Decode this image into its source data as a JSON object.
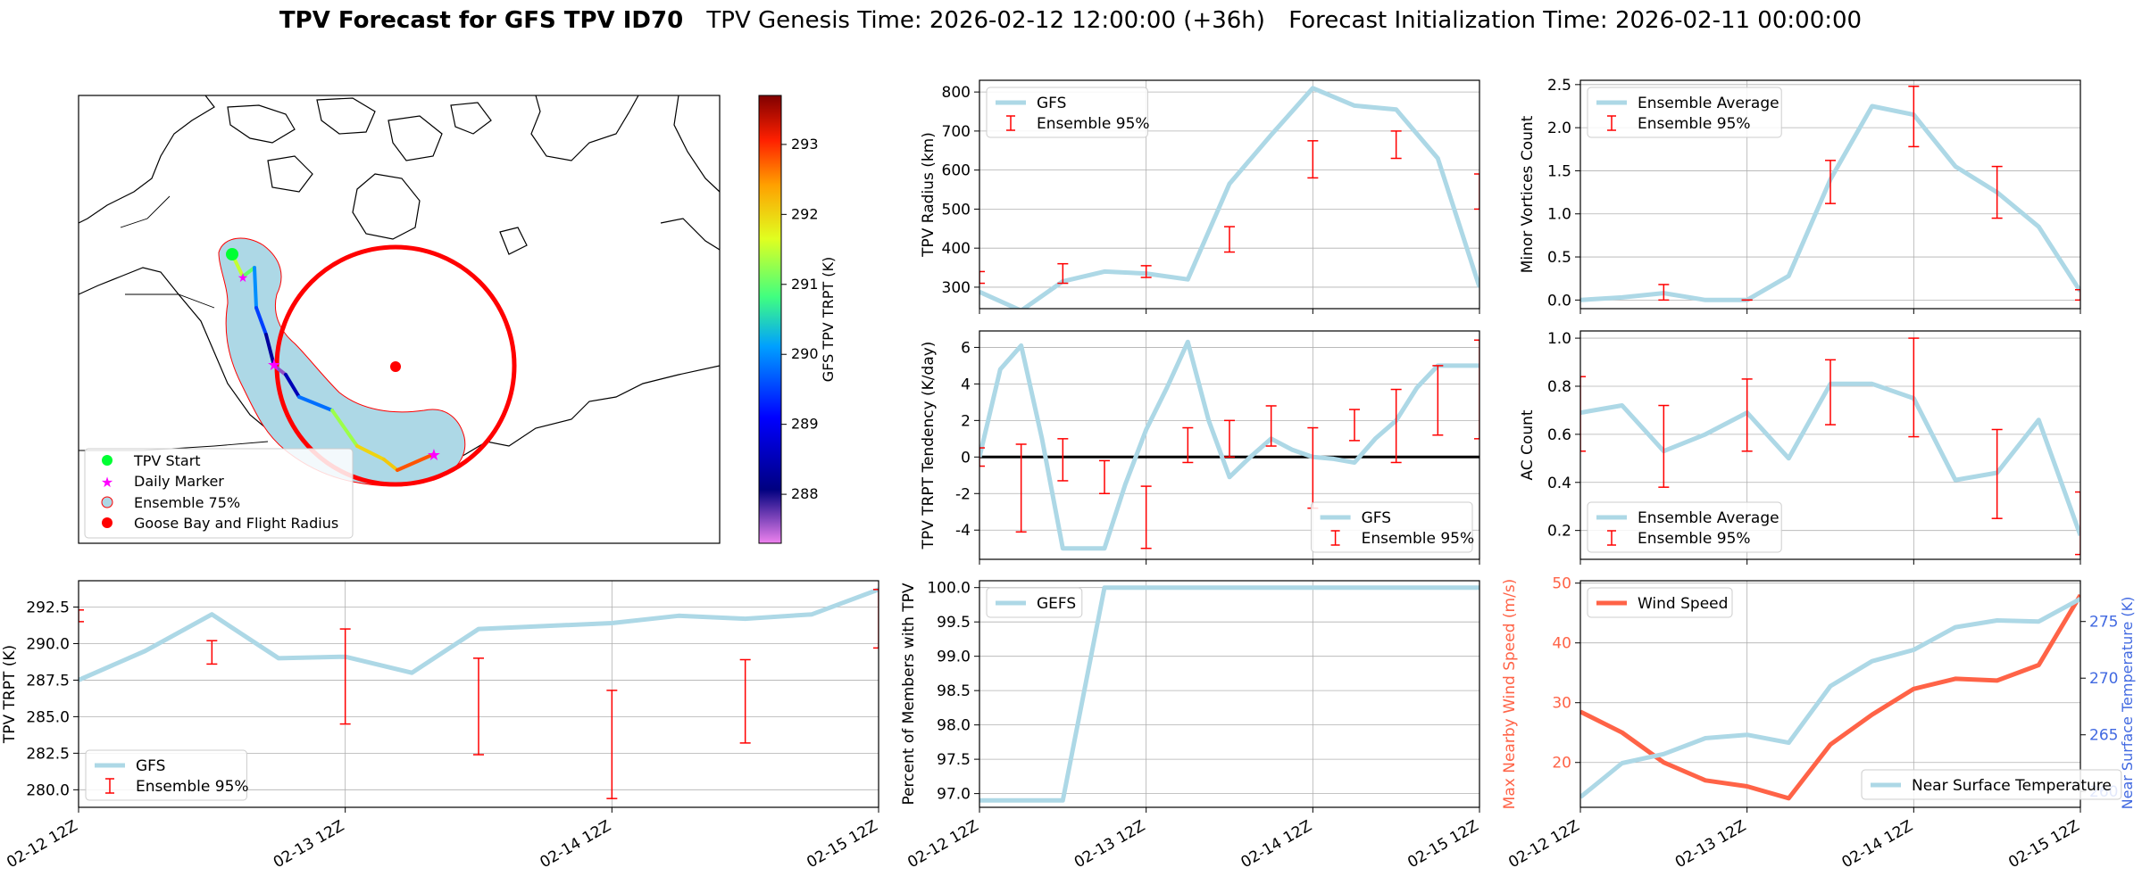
{
  "title": {
    "bold": "TPV Forecast for GFS TPV ID70",
    "genesis": "TPV Genesis Time: 2026-02-12 12:00:00 (+36h)",
    "init": "Forecast Initialization Time: 2026-02-11 00:00:00"
  },
  "colors": {
    "gfs": "#add8e6",
    "ens": "#ff0000",
    "wind": "#ff6347",
    "temp_axis": "#4169e1",
    "ens75": "#add8e6",
    "circle": "#ff0000"
  },
  "time_labels": [
    "02-12 12Z",
    "02-13 12Z",
    "02-14 12Z",
    "02-15 12Z"
  ],
  "map": {
    "legend": [
      "TPV Start",
      "Daily Marker",
      "Ensemble 75%",
      "Goose Bay and Flight Radius"
    ],
    "colorbar": {
      "label": "GFS TPV TRPT (K)",
      "ticks": [
        288,
        289,
        290,
        291,
        292,
        293
      ],
      "range": [
        287.3,
        293.7
      ]
    },
    "track_trpt": [
      291.5,
      291.0,
      290.0,
      289.5,
      288.3,
      287.6,
      288.5,
      289.8,
      291.3,
      292.0,
      292.1,
      292.8,
      293.0
    ]
  },
  "chart_data": [
    {
      "id": "radius",
      "type": "line",
      "ylabel": "TPV Radius (km)",
      "ylim": [
        245,
        830
      ],
      "yticks": [
        300,
        400,
        500,
        600,
        700,
        800
      ],
      "legend": [
        "GFS",
        "Ensemble 95%"
      ],
      "legend_pos": "top-left",
      "x": [
        0,
        0.25,
        0.5,
        0.75,
        1.0,
        1.25,
        1.5,
        1.75,
        2.0,
        2.25,
        2.5,
        2.75,
        3.0
      ],
      "series": [
        {
          "name": "GFS",
          "values": [
            288,
            240,
            315,
            340,
            335,
            320,
            565,
            690,
            810,
            765,
            755,
            630,
            300
          ]
        }
      ],
      "errorbars": [
        {
          "x": 0,
          "lo": 310,
          "hi": 340
        },
        {
          "x": 0.5,
          "lo": 310,
          "hi": 360
        },
        {
          "x": 1.0,
          "lo": 325,
          "hi": 355
        },
        {
          "x": 1.5,
          "lo": 390,
          "hi": 455
        },
        {
          "x": 2.0,
          "lo": 580,
          "hi": 675
        },
        {
          "x": 2.5,
          "lo": 630,
          "hi": 700
        },
        {
          "x": 3.0,
          "lo": 500,
          "hi": 590
        }
      ]
    },
    {
      "id": "minor",
      "type": "line",
      "ylabel": "Minor Vortices Count",
      "ylim": [
        -0.1,
        2.55
      ],
      "yticks": [
        0.0,
        0.5,
        1.0,
        1.5,
        2.0,
        2.5
      ],
      "legend": [
        "Ensemble Average",
        "Ensemble 95%"
      ],
      "legend_pos": "top-left",
      "x": [
        0,
        0.25,
        0.5,
        0.75,
        1.0,
        1.25,
        1.5,
        1.75,
        2.0,
        2.25,
        2.5,
        2.75,
        3.0
      ],
      "series": [
        {
          "name": "Ensemble Average",
          "values": [
            0,
            0.03,
            0.08,
            0,
            0,
            0.28,
            1.4,
            2.25,
            2.15,
            1.55,
            1.25,
            0.85,
            0.1
          ]
        }
      ],
      "errorbars": [
        {
          "x": 0.5,
          "lo": 0.0,
          "hi": 0.18
        },
        {
          "x": 1.0,
          "lo": 0.0,
          "hi": 0.0
        },
        {
          "x": 1.5,
          "lo": 1.12,
          "hi": 1.62
        },
        {
          "x": 2.0,
          "lo": 1.78,
          "hi": 2.48
        },
        {
          "x": 2.5,
          "lo": 0.95,
          "hi": 1.55
        },
        {
          "x": 3.0,
          "lo": 0.0,
          "hi": 0.12
        }
      ]
    },
    {
      "id": "tendency",
      "type": "line",
      "ylabel": "TPV TRPT Tendency (K/day)",
      "ylim": [
        -5.6,
        6.9
      ],
      "yticks": [
        -4,
        -2,
        0,
        2,
        4,
        6
      ],
      "zero_line": true,
      "legend": [
        "GFS",
        "Ensemble 95%"
      ],
      "legend_pos": "bottom-right",
      "x": [
        0,
        0.125,
        0.25,
        0.375,
        0.5,
        0.625,
        0.75,
        0.875,
        1.0,
        1.125,
        1.25,
        1.375,
        1.5,
        1.625,
        1.75,
        1.875,
        2.0,
        2.125,
        2.25,
        2.375,
        2.5,
        2.625,
        2.75,
        2.875,
        3.0
      ],
      "series": [
        {
          "name": "GFS",
          "values": [
            0,
            4.8,
            6.1,
            1.0,
            -5.0,
            -5.0,
            -5.0,
            -1.5,
            1.5,
            3.8,
            6.3,
            2.0,
            -1.1,
            0,
            1.0,
            0.4,
            0,
            -0.1,
            -0.3,
            1.0,
            2.0,
            3.8,
            5.0,
            5.0,
            5.0
          ]
        }
      ],
      "errorbars": [
        {
          "x": 0,
          "lo": -0.5,
          "hi": 0.5
        },
        {
          "x": 0.25,
          "lo": -4.1,
          "hi": 0.7
        },
        {
          "x": 0.5,
          "lo": -1.3,
          "hi": 1.0
        },
        {
          "x": 0.75,
          "lo": -2.0,
          "hi": -0.2
        },
        {
          "x": 1.0,
          "lo": -5.0,
          "hi": -1.6
        },
        {
          "x": 1.25,
          "lo": -0.3,
          "hi": 1.6
        },
        {
          "x": 1.5,
          "lo": 0.0,
          "hi": 2.0
        },
        {
          "x": 1.75,
          "lo": 0.6,
          "hi": 2.8
        },
        {
          "x": 2.0,
          "lo": -2.8,
          "hi": 1.6
        },
        {
          "x": 2.25,
          "lo": 0.9,
          "hi": 2.6
        },
        {
          "x": 2.5,
          "lo": -0.3,
          "hi": 3.7
        },
        {
          "x": 2.75,
          "lo": 1.2,
          "hi": 5.0
        },
        {
          "x": 3.0,
          "lo": 1.0,
          "hi": 6.4
        }
      ]
    },
    {
      "id": "ac",
      "type": "line",
      "ylabel": "AC Count",
      "ylim": [
        0.08,
        1.03
      ],
      "yticks": [
        0.2,
        0.4,
        0.6,
        0.8,
        1.0
      ],
      "legend": [
        "Ensemble Average",
        "Ensemble 95%"
      ],
      "legend_pos": "bottom-left",
      "x": [
        0,
        0.25,
        0.5,
        0.75,
        1.0,
        1.25,
        1.5,
        1.75,
        2.0,
        2.25,
        2.5,
        2.75,
        3.0
      ],
      "series": [
        {
          "name": "Ensemble Average",
          "values": [
            0.69,
            0.72,
            0.53,
            0.6,
            0.69,
            0.5,
            0.81,
            0.81,
            0.75,
            0.41,
            0.44,
            0.66,
            0.18
          ]
        }
      ],
      "errorbars": [
        {
          "x": 0,
          "lo": 0.53,
          "hi": 0.84
        },
        {
          "x": 0.5,
          "lo": 0.38,
          "hi": 0.72
        },
        {
          "x": 1.0,
          "lo": 0.53,
          "hi": 0.83
        },
        {
          "x": 1.5,
          "lo": 0.64,
          "hi": 0.91
        },
        {
          "x": 2.0,
          "lo": 0.59,
          "hi": 1.0
        },
        {
          "x": 2.5,
          "lo": 0.25,
          "hi": 0.62
        },
        {
          "x": 3.0,
          "lo": 0.1,
          "hi": 0.36
        }
      ]
    },
    {
      "id": "trpt",
      "type": "line",
      "ylabel": "TPV TRPT (K)",
      "ylim": [
        278.8,
        294.3
      ],
      "yticks": [
        280.0,
        282.5,
        285.0,
        287.5,
        290.0,
        292.5
      ],
      "legend": [
        "GFS",
        "Ensemble 95%"
      ],
      "legend_pos": "bottom-left",
      "x": [
        0,
        0.25,
        0.5,
        0.75,
        1.0,
        1.25,
        1.5,
        1.75,
        2.0,
        2.25,
        2.5,
        2.75,
        3.0
      ],
      "series": [
        {
          "name": "GFS",
          "values": [
            287.5,
            289.5,
            292.0,
            289.0,
            289.1,
            288.0,
            291.0,
            291.2,
            291.4,
            291.9,
            291.7,
            292.0,
            293.7
          ]
        }
      ],
      "errorbars": [
        {
          "x": 0,
          "lo": 291.5,
          "hi": 292.3
        },
        {
          "x": 0.5,
          "lo": 288.6,
          "hi": 290.2
        },
        {
          "x": 1.0,
          "lo": 284.5,
          "hi": 291.0
        },
        {
          "x": 1.5,
          "lo": 282.4,
          "hi": 289.0
        },
        {
          "x": 2.0,
          "lo": 279.4,
          "hi": 286.8
        },
        {
          "x": 2.5,
          "lo": 283.2,
          "hi": 288.9
        },
        {
          "x": 3.0,
          "lo": 289.7,
          "hi": 293.7
        }
      ]
    },
    {
      "id": "percent",
      "type": "line",
      "ylabel": "Percent of Members with TPV",
      "ylim": [
        96.8,
        100.1
      ],
      "yticks": [
        97.0,
        97.5,
        98.0,
        98.5,
        99.0,
        99.5,
        100.0
      ],
      "legend": [
        "GEFS"
      ],
      "legend_pos": "top-left",
      "x": [
        0,
        0.25,
        0.5,
        0.75,
        1.0,
        1.25,
        1.5,
        1.75,
        2.0,
        2.25,
        2.5,
        2.75,
        3.0
      ],
      "series": [
        {
          "name": "GEFS",
          "values": [
            96.9,
            96.9,
            96.9,
            100,
            100,
            100,
            100,
            100,
            100,
            100,
            100,
            100,
            100
          ]
        }
      ]
    },
    {
      "id": "wind",
      "type": "line",
      "ylabel": "Max Nearby Wind Speed (m/s)",
      "ylim": [
        12.5,
        50.4
      ],
      "yticks": [
        20,
        30,
        40,
        50
      ],
      "ylabel2": "Near Surface Temperature (K)",
      "ylim2": [
        258.6,
        278.6
      ],
      "yticks2": [
        260,
        265,
        270,
        275
      ],
      "legend": [
        "Wind Speed",
        "Near Surface Temperature"
      ],
      "legend_pos": "top-left / bottom-right",
      "x": [
        0,
        0.25,
        0.5,
        0.75,
        1.0,
        1.25,
        1.5,
        1.75,
        2.0,
        2.25,
        2.5,
        2.75,
        3.0
      ],
      "series": [
        {
          "name": "Wind Speed",
          "axis": "left",
          "values": [
            28.5,
            25.0,
            20.0,
            17.0,
            16.0,
            14.0,
            23.0,
            28.0,
            32.3,
            34.0,
            33.7,
            36.3,
            48.0
          ]
        },
        {
          "name": "Near Surface Temperature",
          "axis": "right",
          "values": [
            259.5,
            262.5,
            263.3,
            264.7,
            265.0,
            264.3,
            269.3,
            271.5,
            272.5,
            274.5,
            275.1,
            275.0,
            277.0
          ]
        }
      ]
    }
  ]
}
